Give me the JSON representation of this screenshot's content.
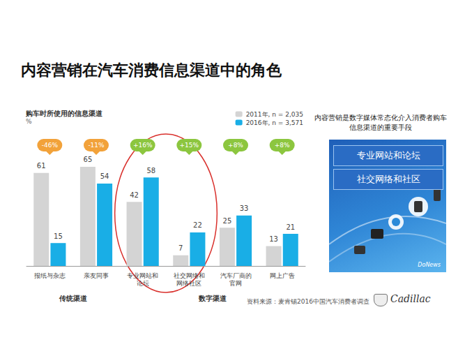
{
  "slide_title": "内容营销在汽车消费信息渠道中的角色",
  "chart_data": {
    "type": "bar",
    "title": "购车时所使用的信息渠道",
    "unit": "%",
    "categories": [
      "报纸与杂志",
      "亲友同事",
      "专业网站和论坛",
      "社交网络和网络社区",
      "汽车厂商的官网",
      "网上广告"
    ],
    "series": [
      {
        "name": "2011年, n = 2,035",
        "color": "#d4d4d4",
        "values": [
          61,
          65,
          42,
          7,
          25,
          13
        ]
      },
      {
        "name": "2016年, n = 3,571",
        "color": "#19aee6",
        "values": [
          15,
          54,
          58,
          22,
          33,
          21
        ]
      }
    ],
    "changes": [
      {
        "value": -46,
        "label": "-46%"
      },
      {
        "value": -11,
        "label": "-11%"
      },
      {
        "value": 16,
        "label": "+16%"
      },
      {
        "value": 15,
        "label": "+15%"
      },
      {
        "value": 8,
        "label": "+8%"
      },
      {
        "value": 8,
        "label": "+8%"
      }
    ],
    "groups": [
      {
        "label": "传统渠道",
        "categories": [
          "报纸与杂志",
          "亲友同事"
        ]
      },
      {
        "label": "数字渠道",
        "categories": [
          "专业网站和论坛",
          "社交网络和网络社区",
          "汽车厂商的官网",
          "网上广告"
        ]
      }
    ],
    "ylim": [
      0,
      70
    ],
    "data_labels": true,
    "tick_labels": "x",
    "grid": false,
    "legend": "top right",
    "source": "资料来源：麦肯锡2016中国汽车消费者调查"
  },
  "side_note": "内容营销是数字媒体常态化介入消费者购车信息渠道的重要手段",
  "side_boxes": [
    "专业网站和论坛",
    "社交网络和社区"
  ],
  "panel_logo": "DoNews",
  "brand_logo": "Cadillac"
}
